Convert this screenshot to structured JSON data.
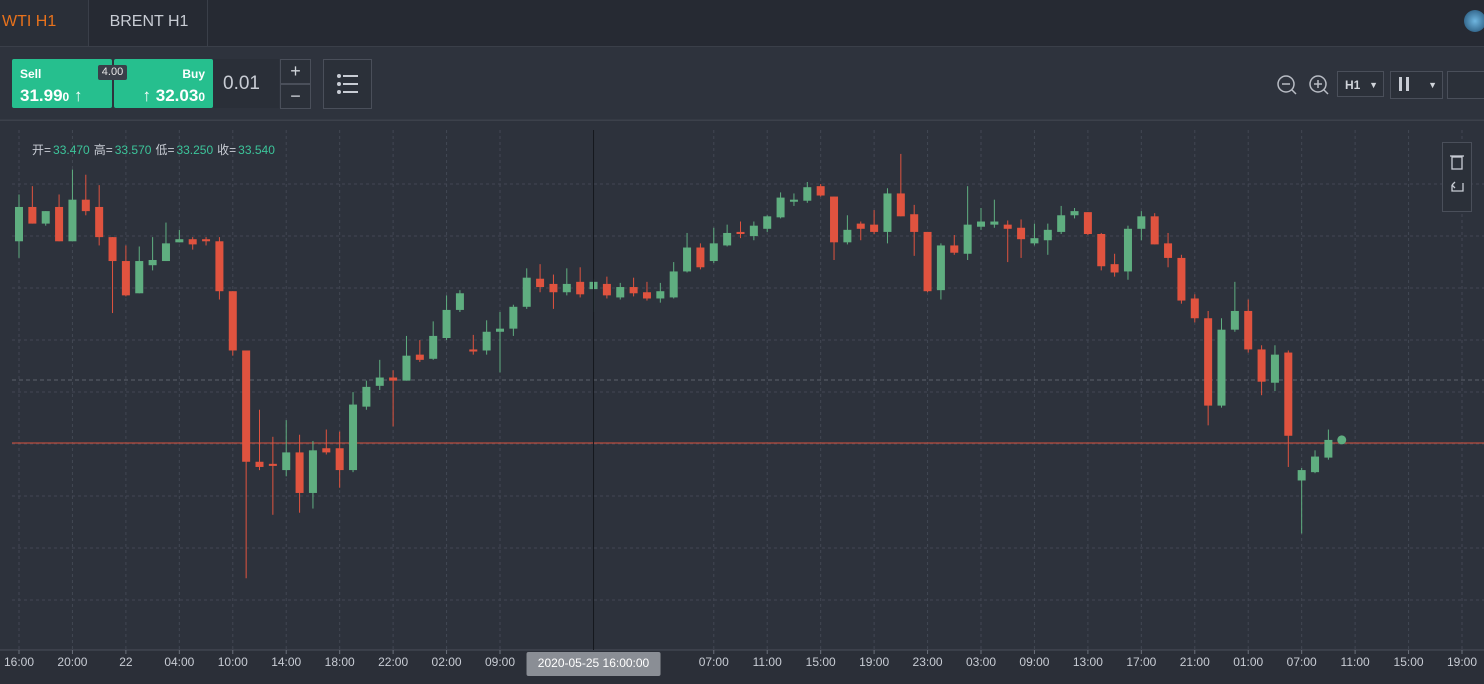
{
  "tabs": [
    "WTI H1",
    "BRENT H1"
  ],
  "trade": {
    "sell_label": "Sell",
    "sell_main": "31.99",
    "sell_pip": "0",
    "sell_arrow": "↑",
    "spread": "4.00",
    "buy_label": "Buy",
    "buy_arrow": "↑",
    "buy_main": "32.03",
    "buy_pip": "0",
    "lot": "0.01",
    "plus": "+",
    "minus": "−",
    "timeframe": "H1"
  },
  "chart_data": {
    "type": "candlestick",
    "up_color": "#5fae80",
    "down_color": "#e0533f",
    "ohlc_info": [
      {
        "label": "开=",
        "value": "33.470"
      },
      {
        "label": "高=",
        "value": "33.570"
      },
      {
        "label": "低=",
        "value": "33.250"
      },
      {
        "label": "收=",
        "value": "33.540"
      }
    ],
    "xlim": [
      0,
      108
    ],
    "ylim": [
      30,
      35
    ],
    "xticks": [
      {
        "value": 0,
        "label": "16:00"
      },
      {
        "value": 4,
        "label": "20:00"
      },
      {
        "value": 8,
        "label": "22"
      },
      {
        "value": 12,
        "label": "04:00"
      },
      {
        "value": 16,
        "label": "10:00"
      },
      {
        "value": 20,
        "label": "14:00"
      },
      {
        "value": 24,
        "label": "18:00"
      },
      {
        "value": 28,
        "label": "22:00"
      },
      {
        "value": 32,
        "label": "02:00"
      },
      {
        "value": 36,
        "label": "09:00"
      },
      {
        "value": 52,
        "label": "07:00"
      },
      {
        "value": 56,
        "label": "11:00"
      },
      {
        "value": 60,
        "label": "15:00"
      },
      {
        "value": 64,
        "label": "19:00"
      },
      {
        "value": 68,
        "label": "23:00"
      },
      {
        "value": 72,
        "label": "03:00"
      },
      {
        "value": 76,
        "label": "09:00"
      },
      {
        "value": 80,
        "label": "13:00"
      },
      {
        "value": 84,
        "label": "17:00"
      },
      {
        "value": 88,
        "label": "21:00"
      },
      {
        "value": 92,
        "label": "01:00"
      },
      {
        "value": 96,
        "label": "07:00"
      },
      {
        "value": 100,
        "label": "11:00"
      },
      {
        "value": 104,
        "label": "15:00"
      },
      {
        "value": 108,
        "label": "19:00"
      }
    ],
    "crosshair": {
      "index": 43,
      "label": "2020-05-25 16:00:00"
    },
    "last_price": 31.99,
    "ohlc": [
      [
        33.93,
        34.38,
        33.77,
        34.26
      ],
      [
        34.26,
        34.46,
        34.1,
        34.1
      ],
      [
        34.1,
        34.22,
        34.08,
        34.22
      ],
      [
        34.26,
        34.38,
        33.93,
        33.93
      ],
      [
        33.93,
        34.62,
        33.93,
        34.33
      ],
      [
        34.33,
        34.57,
        34.18,
        34.22
      ],
      [
        34.26,
        34.47,
        33.89,
        33.97
      ],
      [
        33.97,
        33.97,
        33.24,
        33.74
      ],
      [
        33.74,
        33.89,
        33.4,
        33.41
      ],
      [
        33.43,
        33.88,
        33.43,
        33.74
      ],
      [
        33.7,
        33.97,
        33.65,
        33.75
      ],
      [
        33.74,
        34.11,
        33.74,
        33.91
      ],
      [
        33.92,
        34.04,
        33.92,
        33.95
      ],
      [
        33.95,
        33.97,
        33.85,
        33.9
      ],
      [
        33.95,
        33.97,
        33.89,
        33.93
      ],
      [
        33.93,
        33.97,
        33.37,
        33.45
      ],
      [
        33.45,
        33.45,
        32.83,
        32.88
      ],
      [
        32.88,
        32.88,
        30.69,
        31.81
      ],
      [
        31.81,
        32.31,
        31.73,
        31.76
      ],
      [
        31.79,
        32.05,
        31.3,
        31.77
      ],
      [
        31.73,
        32.21,
        31.67,
        31.9
      ],
      [
        31.9,
        32.07,
        31.32,
        31.51
      ],
      [
        31.51,
        32.01,
        31.36,
        31.92
      ],
      [
        31.94,
        32.12,
        31.88,
        31.9
      ],
      [
        31.94,
        32.1,
        31.56,
        31.73
      ],
      [
        31.73,
        32.48,
        31.71,
        32.36
      ],
      [
        32.34,
        32.59,
        32.31,
        32.53
      ],
      [
        32.54,
        32.79,
        32.5,
        32.62
      ],
      [
        32.62,
        32.69,
        32.15,
        32.59
      ],
      [
        32.59,
        33.02,
        32.59,
        32.83
      ],
      [
        32.84,
        32.98,
        32.77,
        32.79
      ],
      [
        32.8,
        33.16,
        32.79,
        33.02
      ],
      [
        33.0,
        33.41,
        32.98,
        33.27
      ],
      [
        33.27,
        33.46,
        33.25,
        33.43
      ],
      [
        32.89,
        33.03,
        32.84,
        32.87
      ],
      [
        32.88,
        33.17,
        32.84,
        33.06
      ],
      [
        33.06,
        33.25,
        32.67,
        33.09
      ],
      [
        33.09,
        33.32,
        33.02,
        33.3
      ],
      [
        33.3,
        33.67,
        33.28,
        33.58
      ],
      [
        33.57,
        33.71,
        33.44,
        33.49
      ],
      [
        33.52,
        33.61,
        33.28,
        33.44
      ],
      [
        33.44,
        33.67,
        33.41,
        33.52
      ],
      [
        33.54,
        33.68,
        33.39,
        33.42
      ],
      [
        33.47,
        33.57,
        33.25,
        33.54
      ],
      [
        33.52,
        33.59,
        33.38,
        33.41
      ],
      [
        33.39,
        33.53,
        33.37,
        33.49
      ],
      [
        33.49,
        33.58,
        33.4,
        33.43
      ],
      [
        33.44,
        33.54,
        33.36,
        33.38
      ],
      [
        33.38,
        33.53,
        33.34,
        33.45
      ],
      [
        33.39,
        33.73,
        33.38,
        33.64
      ],
      [
        33.64,
        34.01,
        33.63,
        33.87
      ],
      [
        33.87,
        33.91,
        33.66,
        33.68
      ],
      [
        33.74,
        34.06,
        33.72,
        33.91
      ],
      [
        33.89,
        34.09,
        33.88,
        34.01
      ],
      [
        34.02,
        34.12,
        33.96,
        34.0
      ],
      [
        33.98,
        34.12,
        33.94,
        34.08
      ],
      [
        34.05,
        34.18,
        34.02,
        34.17
      ],
      [
        34.16,
        34.4,
        34.15,
        34.35
      ],
      [
        34.31,
        34.39,
        34.27,
        34.33
      ],
      [
        34.32,
        34.5,
        34.3,
        34.45
      ],
      [
        34.46,
        34.48,
        34.36,
        34.37
      ],
      [
        34.36,
        34.36,
        33.75,
        33.92
      ],
      [
        33.92,
        34.18,
        33.9,
        34.04
      ],
      [
        34.1,
        34.12,
        33.94,
        34.05
      ],
      [
        34.09,
        34.23,
        34.0,
        34.02
      ],
      [
        34.02,
        34.44,
        33.91,
        34.39
      ],
      [
        34.39,
        34.77,
        34.17,
        34.17
      ],
      [
        34.19,
        34.28,
        33.79,
        34.02
      ],
      [
        34.02,
        34.02,
        33.44,
        33.45
      ],
      [
        33.46,
        33.91,
        33.37,
        33.89
      ],
      [
        33.89,
        33.99,
        33.8,
        33.82
      ],
      [
        33.81,
        34.46,
        33.75,
        34.09
      ],
      [
        34.07,
        34.25,
        34.04,
        34.12
      ],
      [
        34.09,
        34.33,
        34.06,
        34.12
      ],
      [
        34.09,
        34.13,
        33.73,
        34.05
      ],
      [
        34.06,
        34.14,
        33.77,
        33.95
      ],
      [
        33.91,
        34.1,
        33.89,
        33.96
      ],
      [
        33.94,
        34.1,
        33.8,
        34.04
      ],
      [
        34.02,
        34.27,
        34.0,
        34.18
      ],
      [
        34.18,
        34.25,
        34.15,
        34.22
      ],
      [
        34.21,
        34.21,
        33.99,
        34.0
      ],
      [
        34.0,
        34.01,
        33.65,
        33.69
      ],
      [
        33.71,
        33.81,
        33.59,
        33.63
      ],
      [
        33.64,
        34.08,
        33.56,
        34.05
      ],
      [
        34.05,
        34.22,
        33.94,
        34.17
      ],
      [
        34.17,
        34.2,
        33.9,
        33.9
      ],
      [
        33.91,
        34.01,
        33.68,
        33.77
      ],
      [
        33.77,
        33.8,
        33.33,
        33.36
      ],
      [
        33.38,
        33.42,
        33.15,
        33.19
      ],
      [
        33.19,
        33.26,
        32.16,
        32.35
      ],
      [
        32.35,
        33.19,
        32.33,
        33.08
      ],
      [
        33.08,
        33.54,
        33.06,
        33.26
      ],
      [
        33.26,
        33.37,
        32.86,
        32.89
      ],
      [
        32.89,
        32.93,
        32.45,
        32.58
      ],
      [
        32.57,
        32.93,
        32.49,
        32.84
      ],
      [
        32.86,
        32.88,
        31.76,
        32.06
      ],
      [
        31.63,
        31.75,
        31.12,
        31.73
      ],
      [
        31.71,
        31.92,
        31.7,
        31.86
      ],
      [
        31.85,
        32.12,
        31.83,
        32.02
      ]
    ]
  }
}
